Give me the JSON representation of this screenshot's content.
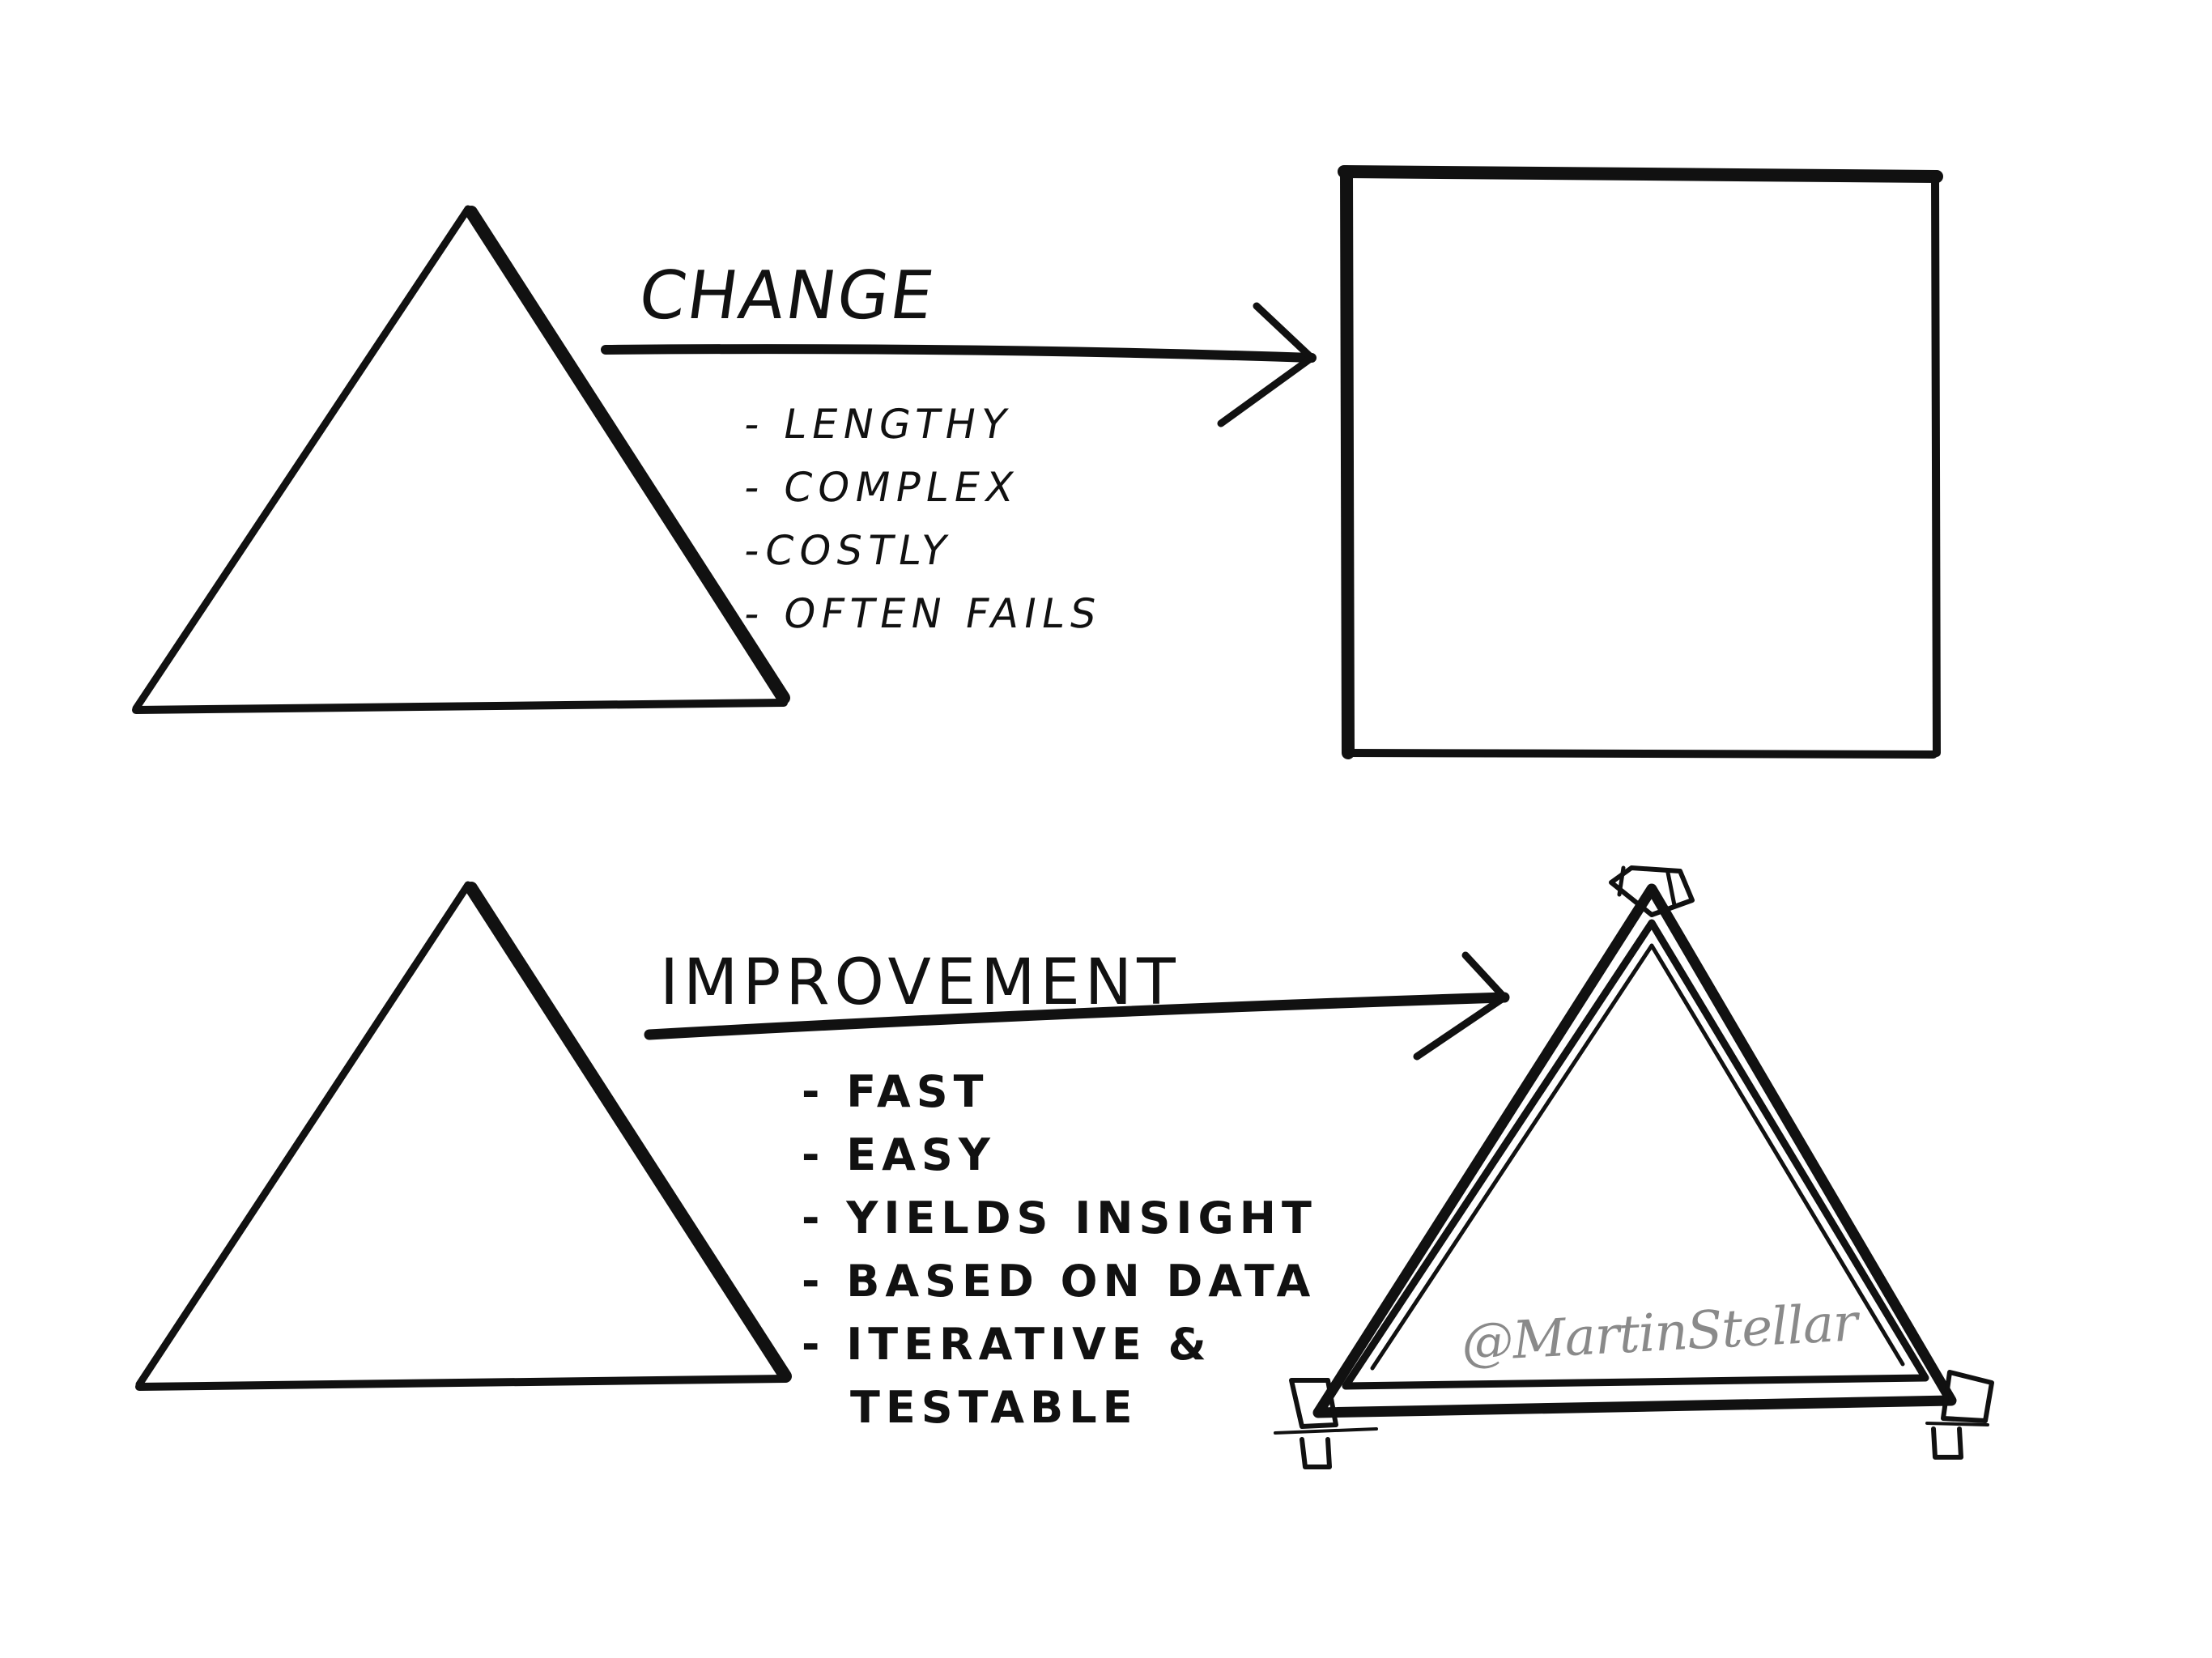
{
  "sketch": {
    "top_row": {
      "label": "CHANGE",
      "points": [
        "- LENGTHY",
        "- COMPLEX",
        "-COSTLY",
        "- OFTEN FAILS"
      ],
      "start_shape_icon": "triangle-icon",
      "end_shape_icon": "square-icon"
    },
    "bottom_row": {
      "label": "IMPROVEMENT",
      "points": [
        "- FAST",
        "- EASY",
        "- YIELDS INSIGHT",
        "- BASED ON DATA",
        "- ITERATIVE &",
        "TESTABLE"
      ],
      "start_shape_icon": "triangle-icon",
      "end_shape_icon": "taped-triangle-icon"
    },
    "signature": "@MartinStellar",
    "ink_color": "#111111",
    "signature_color": "#8a8a8a"
  }
}
